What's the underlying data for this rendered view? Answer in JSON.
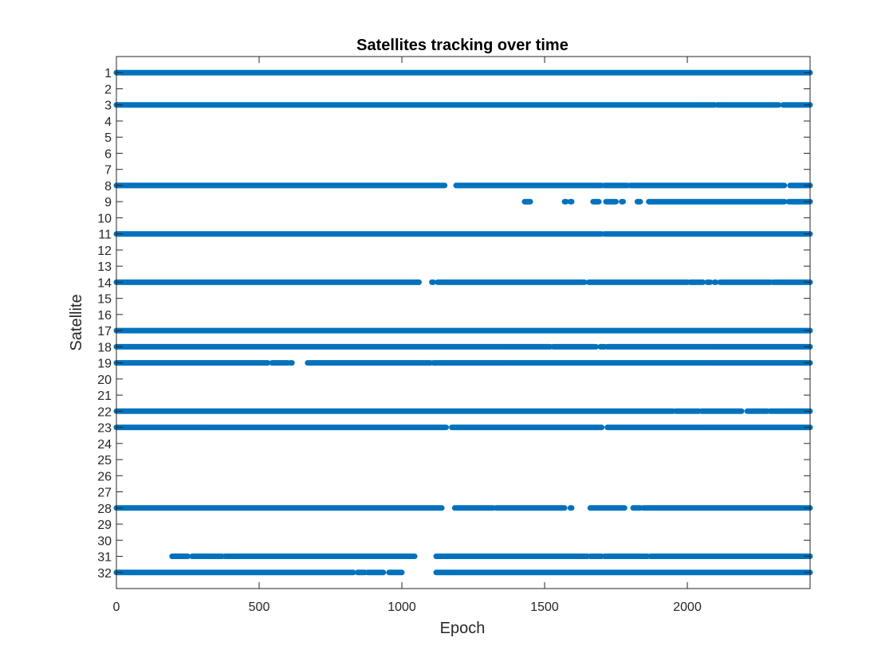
{
  "chart_data": {
    "type": "scatter",
    "title": "Satellites tracking over time",
    "xlabel": "Epoch",
    "ylabel": "Satellite",
    "xlim": [
      0,
      2430
    ],
    "ylim": [
      0.0,
      33.0
    ],
    "y_reversed": true,
    "grid": false,
    "box": true,
    "marker_color": "#0072BD",
    "x_ticks": [
      0,
      500,
      1000,
      1500,
      2000
    ],
    "y_ticks": [
      1,
      2,
      3,
      4,
      5,
      6,
      7,
      8,
      9,
      10,
      11,
      12,
      13,
      14,
      15,
      16,
      17,
      18,
      19,
      20,
      21,
      22,
      23,
      24,
      25,
      26,
      27,
      28,
      29,
      30,
      31,
      32
    ],
    "tracks": [
      {
        "satellite": 1,
        "segments": [
          [
            0,
            2430
          ]
        ]
      },
      {
        "satellite": 3,
        "segments": [
          [
            0,
            2095
          ],
          [
            2105,
            2320
          ],
          [
            2335,
            2430
          ]
        ]
      },
      {
        "satellite": 8,
        "segments": [
          [
            0,
            1150
          ],
          [
            1190,
            1700
          ],
          [
            1710,
            1790
          ],
          [
            1800,
            2340
          ],
          [
            2360,
            2430
          ]
        ]
      },
      {
        "satellite": 9,
        "segments": [
          [
            1430,
            1450
          ],
          [
            1570,
            1575
          ],
          [
            1590,
            1595
          ],
          [
            1670,
            1690
          ],
          [
            1715,
            1750
          ],
          [
            1770,
            1775
          ],
          [
            1825,
            1835
          ],
          [
            1865,
            2340
          ],
          [
            2355,
            2430
          ]
        ]
      },
      {
        "satellite": 11,
        "segments": [
          [
            0,
            1700
          ],
          [
            1710,
            2430
          ]
        ]
      },
      {
        "satellite": 14,
        "segments": [
          [
            0,
            1060
          ],
          [
            1105,
            1110
          ],
          [
            1125,
            1525
          ],
          [
            1530,
            1640
          ],
          [
            1655,
            2000
          ],
          [
            2010,
            2055
          ],
          [
            2070,
            2080
          ],
          [
            2095,
            2100
          ],
          [
            2115,
            2290
          ],
          [
            2300,
            2430
          ]
        ]
      },
      {
        "satellite": 17,
        "segments": [
          [
            0,
            2430
          ]
        ]
      },
      {
        "satellite": 18,
        "segments": [
          [
            0,
            1520
          ],
          [
            1530,
            1680
          ],
          [
            1695,
            1710
          ],
          [
            1720,
            2430
          ]
        ]
      },
      {
        "satellite": 19,
        "segments": [
          [
            0,
            530
          ],
          [
            545,
            600
          ],
          [
            610,
            615
          ],
          [
            670,
            1100
          ],
          [
            1110,
            2430
          ]
        ]
      },
      {
        "satellite": 22,
        "segments": [
          [
            0,
            1950
          ],
          [
            1960,
            2000
          ],
          [
            2005,
            2040
          ],
          [
            2050,
            2190
          ],
          [
            2210,
            2280
          ],
          [
            2290,
            2430
          ]
        ]
      },
      {
        "satellite": 23,
        "segments": [
          [
            0,
            1155
          ],
          [
            1175,
            1700
          ],
          [
            1720,
            2430
          ]
        ]
      },
      {
        "satellite": 28,
        "segments": [
          [
            0,
            1140
          ],
          [
            1185,
            1320
          ],
          [
            1330,
            1570
          ],
          [
            1590,
            1595
          ],
          [
            1660,
            1780
          ],
          [
            1810,
            1835
          ],
          [
            1845,
            2430
          ]
        ]
      },
      {
        "satellite": 31,
        "segments": [
          [
            195,
            250
          ],
          [
            265,
            370
          ],
          [
            380,
            1045
          ],
          [
            1120,
            1650
          ],
          [
            1660,
            1700
          ],
          [
            1710,
            1860
          ],
          [
            1870,
            2430
          ]
        ]
      },
      {
        "satellite": 32,
        "segments": [
          [
            0,
            830
          ],
          [
            845,
            870
          ],
          [
            880,
            935
          ],
          [
            955,
            1000
          ],
          [
            1120,
            2430
          ]
        ]
      }
    ]
  }
}
